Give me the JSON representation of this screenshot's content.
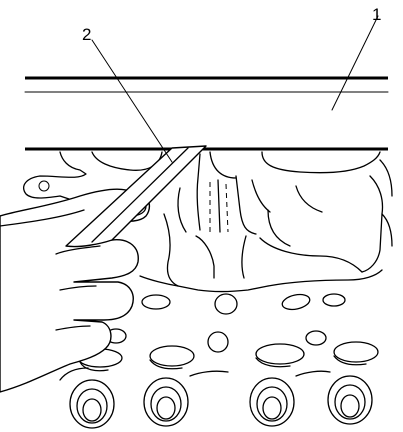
{
  "figure": {
    "callouts": [
      {
        "id": "1",
        "label": "1"
      },
      {
        "id": "2",
        "label": "2"
      }
    ]
  }
}
